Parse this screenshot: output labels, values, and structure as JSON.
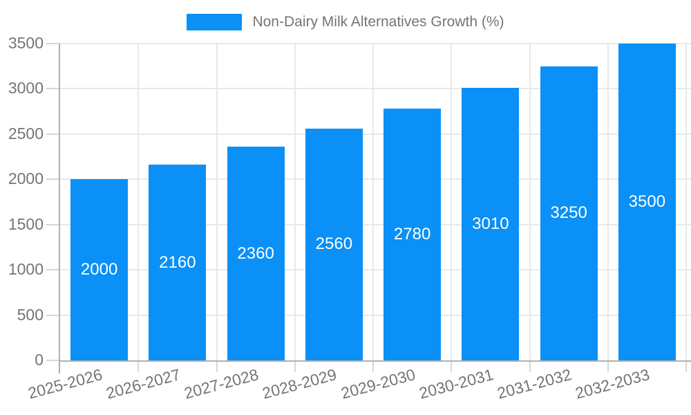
{
  "chart_data": {
    "type": "bar",
    "title": "Non-Dairy Milk Alternatives Growth (%)",
    "series_name": "Non-Dairy Milk Alternatives Growth (%)",
    "categories": [
      "2025-2026",
      "2026-2027",
      "2027-2028",
      "2028-2029",
      "2029-2030",
      "2030-2031",
      "2031-2032",
      "2032-2033"
    ],
    "values": [
      2000,
      2160,
      2360,
      2560,
      2780,
      3010,
      3250,
      3500
    ],
    "xlabel": "",
    "ylabel": "",
    "ylim": [
      0,
      3500
    ],
    "yticks": [
      0,
      500,
      1000,
      1500,
      2000,
      2500,
      3000,
      3500
    ],
    "grid": true,
    "legend_position": "top",
    "bar_color": "#0a90f6",
    "colors": {
      "axis_text": "#757575",
      "bar_label": "#ffffff",
      "gridline": "#e8e8e8",
      "axis_line": "#b0b0b0",
      "tick": "#d6d6d6",
      "background": "#ffffff"
    }
  }
}
